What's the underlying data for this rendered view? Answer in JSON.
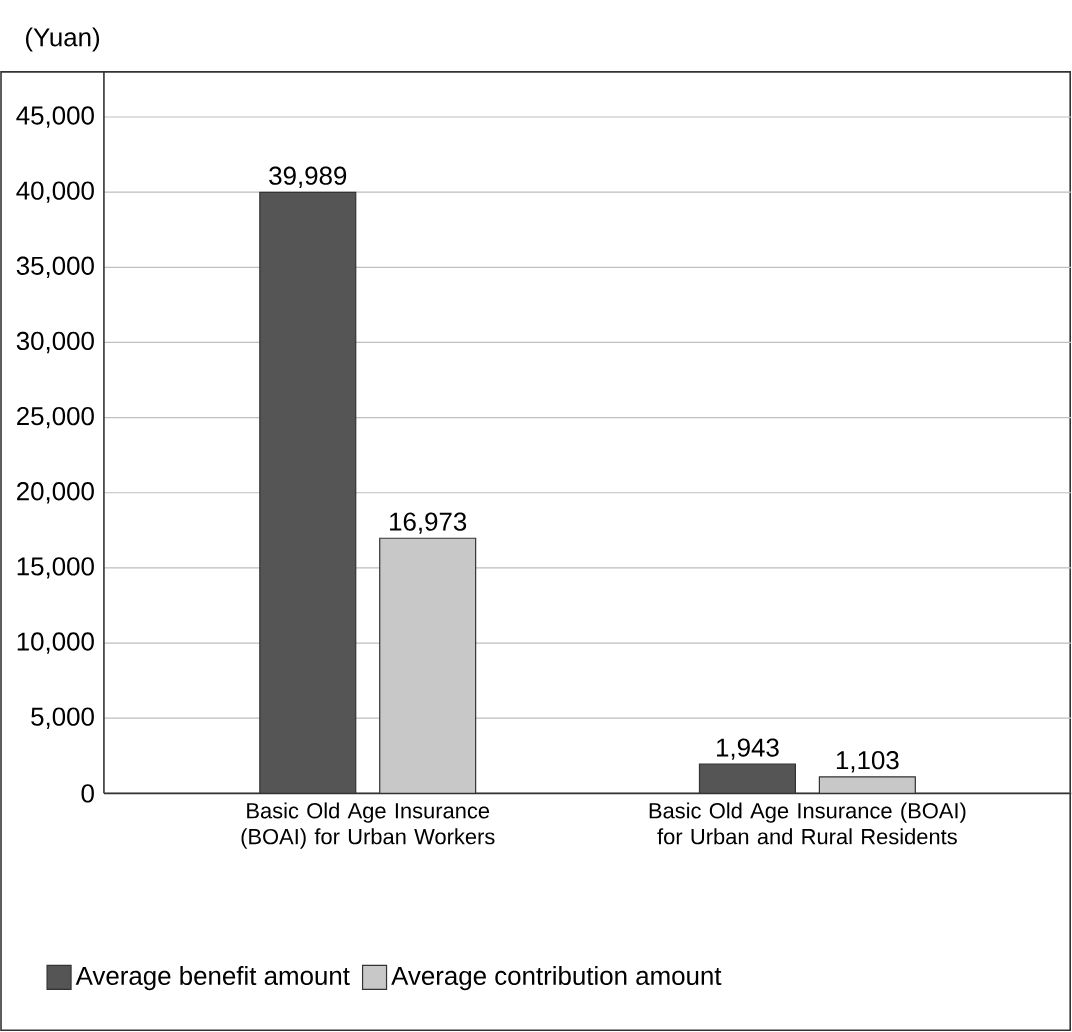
{
  "chart_data": {
    "type": "bar",
    "ylabel": "(Yuan)",
    "categories": [
      "Basic Old Age Insurance (BOAI) for Urban Workers",
      "Basic Old Age Insurance (BOAI) for Urban and Rural Residents"
    ],
    "series": [
      {
        "name": "Average benefit amount",
        "color": "#555555",
        "values": [
          39989,
          1943
        ],
        "value_labels": [
          "39,989",
          "1,943"
        ]
      },
      {
        "name": "Average contribution amount",
        "color": "#c8c8c8",
        "values": [
          16973,
          1103
        ],
        "value_labels": [
          "16,973",
          "1,103"
        ]
      }
    ],
    "ylim": [
      0,
      48000
    ],
    "yticks": [
      0,
      {
        "value": 5000,
        "label": "5,000"
      },
      {
        "value": 10000,
        "label": "10,000"
      },
      {
        "value": 15000,
        "label": "15,000"
      },
      {
        "value": 20000,
        "label": "20,000"
      },
      {
        "value": 25000,
        "label": "25,000"
      },
      {
        "value": 30000,
        "label": "30,000"
      },
      {
        "value": 35000,
        "label": "35,000"
      },
      {
        "value": 40000,
        "label": "40,000"
      },
      {
        "value": 45000,
        "label": "45,000"
      }
    ],
    "grid": "y",
    "legend": "bottom"
  }
}
